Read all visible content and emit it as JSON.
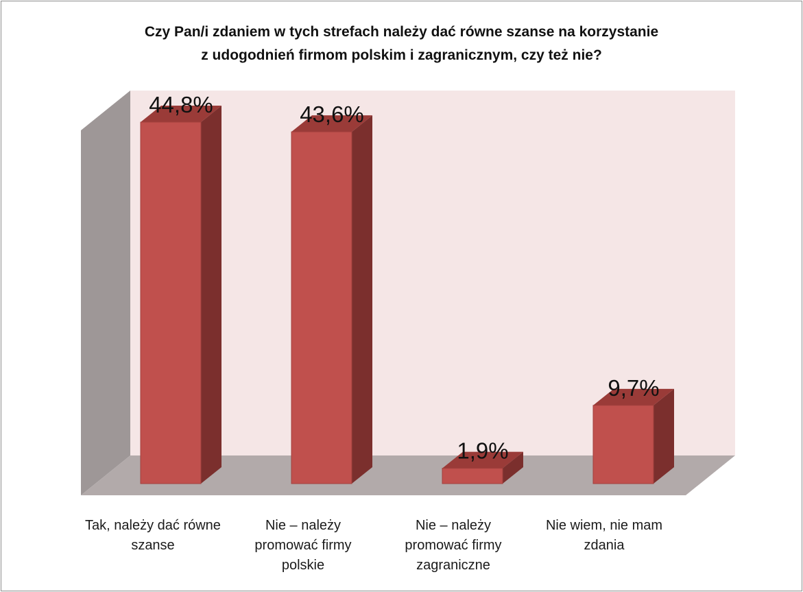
{
  "chart_data": {
    "type": "bar",
    "title": [
      "Czy Pan/i zdaniem w tych strefach należy dać równe szanse na korzystanie",
      "z udogodnień firmom polskim i zagranicznym, czy też nie?"
    ],
    "categories": [
      "Tak, należy dać równe\nszanse",
      "Nie – należy\npromować firmy\npolskie",
      "Nie – należy\npromować firmy\nzagraniczne",
      "Nie wiem, nie mam\nzdania"
    ],
    "values": [
      44.8,
      43.6,
      1.9,
      9.7
    ],
    "data_labels": [
      "44,8%",
      "43,6%",
      "1,9%",
      "9,7%"
    ],
    "ylim": [
      0,
      50
    ],
    "grid": false,
    "legend": "none",
    "colors": {
      "bar_front": "#c0504d",
      "bar_side": "#7b2f2d",
      "bar_top": "#9a3b38",
      "back_wall": "#f5e6e6",
      "side_wall": "#9e9797",
      "floor": "#b2aaaa"
    }
  }
}
